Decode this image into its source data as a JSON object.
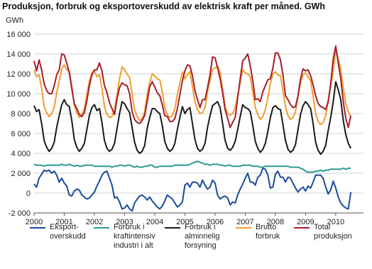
{
  "chart_data": {
    "type": "line",
    "title": "Produksjon, forbruk og eksportoverskudd av elektrisk kraft per måned. GWh",
    "y_label": "GWh",
    "x": [
      2000,
      2000.083,
      2000.167,
      2000.25,
      2000.333,
      2000.417,
      2000.5,
      2000.583,
      2000.667,
      2000.75,
      2000.833,
      2000.917,
      2001,
      2001.083,
      2001.167,
      2001.25,
      2001.333,
      2001.417,
      2001.5,
      2001.583,
      2001.667,
      2001.75,
      2001.833,
      2001.917,
      2002,
      2002.083,
      2002.167,
      2002.25,
      2002.333,
      2002.417,
      2002.5,
      2002.583,
      2002.667,
      2002.75,
      2002.833,
      2002.917,
      2003,
      2003.083,
      2003.167,
      2003.25,
      2003.333,
      2003.417,
      2003.5,
      2003.583,
      2003.667,
      2003.75,
      2003.833,
      2003.917,
      2004,
      2004.083,
      2004.167,
      2004.25,
      2004.333,
      2004.417,
      2004.5,
      2004.583,
      2004.667,
      2004.75,
      2004.833,
      2004.917,
      2005,
      2005.083,
      2005.167,
      2005.25,
      2005.333,
      2005.417,
      2005.5,
      2005.583,
      2005.667,
      2005.75,
      2005.833,
      2005.917,
      2006,
      2006.083,
      2006.167,
      2006.25,
      2006.333,
      2006.417,
      2006.5,
      2006.583,
      2006.667,
      2006.75,
      2006.833,
      2006.917,
      2007,
      2007.083,
      2007.167,
      2007.25,
      2007.333,
      2007.417,
      2007.5,
      2007.583,
      2007.667,
      2007.75,
      2007.833,
      2007.917,
      2008,
      2008.083,
      2008.167,
      2008.25,
      2008.333,
      2008.417,
      2008.5,
      2008.583,
      2008.667,
      2008.75,
      2008.833,
      2008.917,
      2009,
      2009.083,
      2009.167,
      2009.25,
      2009.333,
      2009.417,
      2009.5,
      2009.583,
      2009.667,
      2009.75,
      2009.833,
      2009.917,
      2010,
      2010.083,
      2010.167,
      2010.25,
      2010.333,
      2010.417,
      2010.5
    ],
    "series": [
      {
        "name": "Eksport-overskudd",
        "color": "#1b4b9b",
        "values": [
          900,
          600,
          1500,
          1900,
          2300,
          2200,
          2300,
          2000,
          2200,
          1800,
          1100,
          1500,
          1000,
          700,
          -200,
          -300,
          200,
          400,
          300,
          -200,
          -400,
          -600,
          -500,
          -200,
          100,
          700,
          1200,
          1800,
          2100,
          2200,
          1500,
          800,
          -500,
          -400,
          -900,
          -1600,
          -1500,
          -1200,
          -1600,
          -1800,
          -1000,
          -600,
          -300,
          -200,
          -400,
          -700,
          -400,
          -800,
          -1100,
          -1400,
          -1600,
          -1300,
          -800,
          -200,
          -400,
          -600,
          -1000,
          -1400,
          -1200,
          -900,
          800,
          1000,
          600,
          1100,
          1100,
          1000,
          600,
          1300,
          800,
          400,
          600,
          1300,
          1000,
          -200,
          -600,
          -400,
          -300,
          -500,
          -1200,
          -900,
          -1000,
          -200,
          400,
          900,
          1500,
          2000,
          1100,
          1100,
          800,
          1600,
          1800,
          2500,
          2400,
          1800,
          500,
          600,
          1900,
          2200,
          1600,
          1600,
          1100,
          1600,
          1500,
          1000,
          500,
          100,
          400,
          600,
          200,
          700,
          500,
          1100,
          1800,
          1800,
          1800,
          1500,
          600,
          -100,
          300,
          1200,
          500,
          -400,
          -1000,
          -1300,
          -1500,
          -1600,
          100
        ]
      },
      {
        "name": "Forbruk i kraftintensiv industri i alt",
        "color": "#2a9b92",
        "values": [
          2900,
          2800,
          2800,
          2800,
          2700,
          2800,
          2800,
          2800,
          2800,
          2800,
          2800,
          2900,
          2800,
          2800,
          2900,
          2800,
          2700,
          2800,
          2700,
          2700,
          2800,
          2800,
          2800,
          2800,
          2700,
          2700,
          2700,
          2700,
          2700,
          2700,
          2700,
          2600,
          2700,
          2700,
          2800,
          2800,
          2700,
          2800,
          2800,
          2700,
          2600,
          2700,
          2600,
          2600,
          2700,
          2700,
          2800,
          2800,
          2600,
          2600,
          2700,
          2700,
          2700,
          2700,
          2700,
          2700,
          2800,
          2800,
          2800,
          2800,
          2800,
          2800,
          2900,
          3000,
          3100,
          3200,
          3100,
          3000,
          2900,
          2900,
          2800,
          2900,
          2900,
          2900,
          2800,
          2800,
          2700,
          2800,
          2800,
          2700,
          2700,
          2700,
          2700,
          2800,
          2800,
          2800,
          2800,
          2700,
          2700,
          2700,
          2600,
          2600,
          2700,
          2700,
          2700,
          2700,
          2700,
          2700,
          2700,
          2700,
          2700,
          2700,
          2600,
          2600,
          2600,
          2600,
          2500,
          2400,
          2200,
          2100,
          2100,
          2100,
          2200,
          2200,
          2300,
          2200,
          2300,
          2300,
          2400,
          2400,
          2400,
          2400,
          2400,
          2500,
          2400,
          2500,
          2500
        ]
      },
      {
        "name": "Forbruk i alminnelig forsyning",
        "color": "#1a1a1a",
        "values": [
          8800,
          8200,
          8400,
          7000,
          5300,
          4600,
          4200,
          4500,
          5100,
          6600,
          7800,
          8900,
          9400,
          8900,
          8700,
          7300,
          5400,
          4600,
          4200,
          4500,
          5000,
          6400,
          7800,
          8600,
          8900,
          8300,
          8500,
          7100,
          5300,
          4500,
          4200,
          4400,
          5000,
          6500,
          8000,
          9200,
          9000,
          8500,
          8100,
          6600,
          5100,
          4300,
          4000,
          4200,
          4800,
          6500,
          7600,
          8500,
          8500,
          8200,
          8000,
          6800,
          5200,
          4500,
          4200,
          4400,
          5000,
          6400,
          7600,
          8700,
          8000,
          8400,
          8600,
          7000,
          5400,
          4500,
          4200,
          4400,
          5000,
          6600,
          7800,
          8800,
          9000,
          9200,
          8600,
          7000,
          5300,
          4500,
          4300,
          4600,
          5200,
          6400,
          7700,
          8900,
          8600,
          8500,
          8200,
          6800,
          5200,
          4500,
          4100,
          4400,
          5000,
          6200,
          7600,
          8600,
          8800,
          8500,
          8400,
          6900,
          5300,
          4400,
          4100,
          4300,
          4900,
          6400,
          7900,
          8800,
          9200,
          8900,
          8500,
          7000,
          5100,
          4300,
          3900,
          4200,
          4800,
          6300,
          7600,
          9200,
          11200,
          10400,
          9400,
          7300,
          5900,
          5000,
          4500
        ]
      },
      {
        "name": "Brutto forbruk",
        "color": "#f39c2e",
        "values": [
          12400,
          11700,
          11900,
          10500,
          8700,
          8100,
          7700,
          8000,
          8600,
          10100,
          11300,
          12500,
          12900,
          12400,
          12300,
          10800,
          8800,
          8100,
          7600,
          7900,
          8500,
          9900,
          11300,
          12100,
          12300,
          11700,
          11900,
          10500,
          8700,
          7900,
          7600,
          7700,
          8400,
          9900,
          11500,
          12700,
          12400,
          12000,
          11600,
          10000,
          8400,
          7700,
          7300,
          7500,
          8200,
          9900,
          11100,
          12000,
          11800,
          11500,
          11400,
          10200,
          8600,
          7900,
          7600,
          7800,
          8500,
          9900,
          11100,
          12200,
          11500,
          11900,
          12200,
          10700,
          9200,
          8400,
          8000,
          8100,
          8600,
          10200,
          11300,
          12400,
          12600,
          12800,
          12100,
          10500,
          8700,
          8000,
          7800,
          8000,
          8600,
          9800,
          11100,
          12400,
          12100,
          12000,
          11700,
          10200,
          8600,
          7900,
          7400,
          7700,
          8400,
          9600,
          11000,
          12000,
          12200,
          11900,
          11800,
          10300,
          8700,
          7800,
          7400,
          7600,
          8200,
          9700,
          11100,
          11900,
          12100,
          11700,
          11300,
          9800,
          8000,
          7200,
          6900,
          7100,
          7800,
          9300,
          10700,
          12300,
          14300,
          13500,
          12500,
          10500,
          9000,
          8200,
          7700
        ]
      },
      {
        "name": "Total produksjon",
        "color": "#a51f2b",
        "values": [
          13300,
          12300,
          13400,
          12400,
          11000,
          10300,
          10000,
          10000,
          10800,
          11900,
          12400,
          14000,
          13900,
          13100,
          12100,
          10500,
          9000,
          8500,
          7900,
          7700,
          8100,
          9300,
          10800,
          11900,
          12400,
          12400,
          13100,
          12300,
          10800,
          10100,
          9100,
          8500,
          7900,
          9500,
          10600,
          11100,
          10900,
          10800,
          10000,
          8200,
          7400,
          7100,
          7000,
          7300,
          7800,
          9200,
          10700,
          11200,
          10700,
          10100,
          9800,
          8900,
          7800,
          7700,
          7200,
          7200,
          7500,
          8500,
          9900,
          11300,
          12300,
          12900,
          12800,
          11800,
          10300,
          9400,
          8600,
          9400,
          9400,
          10600,
          11900,
          13700,
          13600,
          12600,
          11500,
          10100,
          8400,
          7500,
          6600,
          7100,
          7600,
          9600,
          11500,
          13300,
          13600,
          14000,
          12800,
          11300,
          9400,
          9500,
          9200,
          10200,
          10800,
          11400,
          11500,
          12600,
          14100,
          14100,
          13400,
          11900,
          9800,
          9400,
          8900,
          8600,
          8700,
          9800,
          11500,
          12500,
          12300,
          12400,
          11800,
          10900,
          9800,
          9000,
          8700,
          8600,
          8400,
          9200,
          11000,
          13500,
          14800,
          13100,
          11500,
          9200,
          7500,
          6600,
          7800
        ]
      }
    ],
    "xlim": [
      2000,
      2010.92
    ],
    "xticks": [
      2000,
      2001,
      2002,
      2003,
      2004,
      2005,
      2006,
      2007,
      2008,
      2009,
      2010
    ],
    "ylim": [
      -2000,
      16000
    ],
    "yticks": [
      {
        "value": -2000,
        "label": "-2 000"
      },
      0,
      {
        "value": 2000,
        "label": "2 000"
      },
      {
        "value": 4000,
        "label": "4 000"
      },
      {
        "value": 6000,
        "label": "6 000"
      },
      {
        "value": 8000,
        "label": "8 000"
      },
      {
        "value": 10000,
        "label": "10 000"
      },
      {
        "value": 12000,
        "label": "12 000"
      },
      {
        "value": 14000,
        "label": "14 000"
      },
      {
        "value": 16000,
        "label": "16 000"
      }
    ],
    "grid": true
  }
}
